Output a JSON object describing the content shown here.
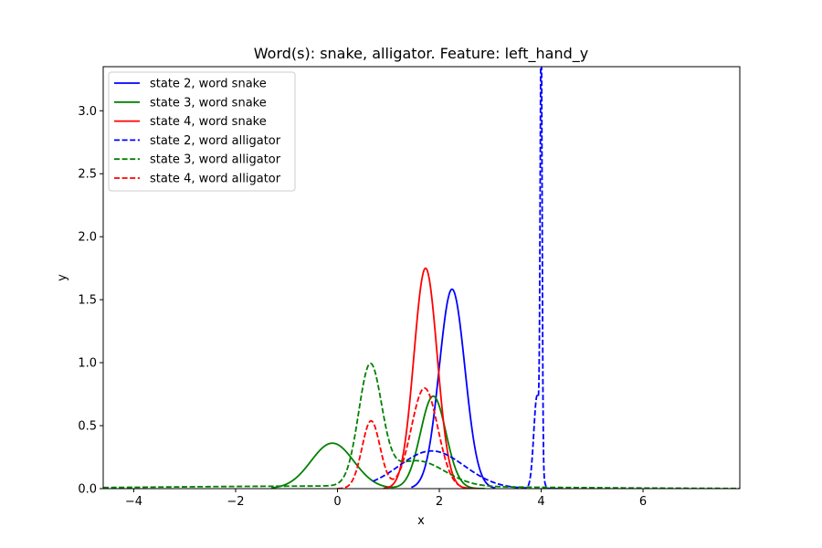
{
  "chart_data": {
    "type": "line",
    "title": "Word(s): snake, alligator. Feature: left_hand_y",
    "xlabel": "x",
    "ylabel": "y",
    "xlim": [
      -4.6,
      7.9
    ],
    "ylim": [
      0.0,
      3.35
    ],
    "xticks": [
      -4,
      -2,
      0,
      2,
      4,
      6
    ],
    "xtick_labels": [
      "−4",
      "−2",
      "0",
      "2",
      "4",
      "6"
    ],
    "yticks": [
      0.0,
      0.5,
      1.0,
      1.5,
      2.0,
      2.5,
      3.0
    ],
    "ytick_labels": [
      "0.0",
      "0.5",
      "1.0",
      "1.5",
      "2.0",
      "2.5",
      "3.0"
    ],
    "grid": false,
    "legend_position": "top-left",
    "series": [
      {
        "name": "state 2, word snake",
        "color": "#0000ff",
        "style": "solid",
        "components": [
          {
            "w": 1.0,
            "mu": 2.25,
            "sigma": 0.252
          }
        ],
        "range": [
          1.45,
          3.1
        ]
      },
      {
        "name": "state 3, word snake",
        "color": "#008000",
        "style": "solid",
        "components": [
          {
            "w": 0.38,
            "mu": -0.1,
            "sigma": 0.42
          },
          {
            "w": 0.46,
            "mu": 1.88,
            "sigma": 0.25
          }
        ],
        "range": [
          -1.3,
          2.9
        ]
      },
      {
        "name": "state 4, word snake",
        "color": "#ff0000",
        "style": "solid",
        "components": [
          {
            "w": 1.0,
            "mu": 1.73,
            "sigma": 0.228
          }
        ],
        "range": [
          0.9,
          2.6
        ]
      },
      {
        "name": "state 2, word alligator",
        "color": "#0000ff",
        "style": "dashed",
        "components": [
          {
            "w": 0.48,
            "mu": 1.85,
            "sigma": 0.64
          },
          {
            "w": 0.12,
            "mu": 3.92,
            "sigma": 0.065
          },
          {
            "w": 0.16,
            "mu": 4.0,
            "sigma": 0.019
          }
        ],
        "range": [
          0.7,
          4.4
        ]
      },
      {
        "name": "state 3, word alligator",
        "color": "#008000",
        "style": "dashed",
        "components": [
          {
            "w": 0.52,
            "mu": 0.64,
            "sigma": 0.225
          },
          {
            "w": 0.28,
            "mu": 1.55,
            "sigma": 0.55
          },
          {
            "w": 0.18,
            "mu": 0.0,
            "sigma": 3.5
          }
        ],
        "range": [
          -4.6,
          7.9
        ]
      },
      {
        "name": "state 4, word alligator",
        "color": "#ff0000",
        "style": "dashed",
        "components": [
          {
            "w": 0.24,
            "mu": 0.66,
            "sigma": 0.178
          },
          {
            "w": 0.52,
            "mu": 1.71,
            "sigma": 0.26
          }
        ],
        "range": [
          0.0,
          2.8
        ]
      }
    ]
  }
}
